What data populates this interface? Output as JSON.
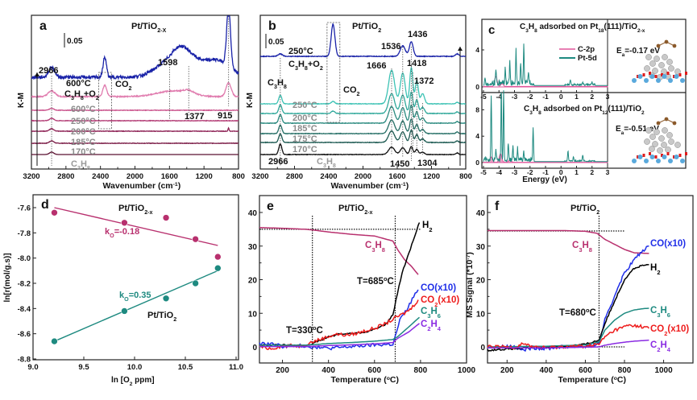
{
  "chart_data": [
    {
      "panel": "a",
      "type": "line",
      "title": "Pt/TiO2-x",
      "xlabel": "Wavenumber (cm-1)",
      "ylabel": "K-M",
      "xlim": [
        3200,
        800
      ],
      "x_ticks": [
        3200,
        2800,
        2400,
        2000,
        1600,
        1200,
        800
      ],
      "scale_bar": "0.05",
      "box_label": "CO2",
      "peak_labels": [
        "2966",
        "1598",
        "1377",
        "915"
      ],
      "peak_positions": [
        2966,
        1598,
        1377,
        915
      ],
      "series": [
        {
          "name": "C3H8",
          "color": "#5b1030",
          "label_color": "#9a9a9a"
        },
        {
          "name": "170°C",
          "color": "#7a1a45",
          "label_color": "#8a8a8a"
        },
        {
          "name": "185°C",
          "color": "#8e2356",
          "label_color": "#8a8a8a"
        },
        {
          "name": "200°C",
          "color": "#b23b74",
          "label_color": "#8a8a8a"
        },
        {
          "name": "250°C",
          "color": "#c9508a",
          "label_color": "#8a8a8a"
        },
        {
          "name": "600°C",
          "color": "#e07bae",
          "label_color": "#8a8a8a"
        },
        {
          "name": "600°C C3H8+O2",
          "color": "#1a23a8",
          "label_color": "#111111"
        }
      ]
    },
    {
      "panel": "b",
      "type": "line",
      "title": "Pt/TiO2",
      "xlabel": "Wavenumber (cm-1)",
      "ylabel": "K-M",
      "xlim": [
        3200,
        800
      ],
      "x_ticks": [
        3200,
        2800,
        2400,
        2000,
        1600,
        1200,
        800
      ],
      "scale_bar": "0.05",
      "box_label": "CO2",
      "peak_labels": [
        "2966",
        "1666",
        "1536",
        "1436",
        "1418",
        "1372",
        "1450",
        "1304"
      ],
      "peak_positions": [
        2966,
        1666,
        1536,
        1436,
        1418,
        1372,
        1450,
        1304
      ],
      "series": [
        {
          "name": "C3H8",
          "color": "#111111",
          "label_color": "#9a9a9a"
        },
        {
          "name": "170°C",
          "color": "#1d5a52",
          "label_color": "#8a8a8a"
        },
        {
          "name": "175°C",
          "color": "#246e65",
          "label_color": "#8a8a8a"
        },
        {
          "name": "185°C",
          "color": "#2a8a7f",
          "label_color": "#8a8a8a"
        },
        {
          "name": "200°C",
          "color": "#2fa89a",
          "label_color": "#8a8a8a"
        },
        {
          "name": "250°C",
          "color": "#3cc2b4",
          "label_color": "#8a8a8a"
        },
        {
          "name": "250°C C3H8+O2",
          "color": "#1a23a8",
          "label_color": "#111111"
        }
      ]
    },
    {
      "panel": "c",
      "type": "line",
      "xlabel": "Energy (eV)",
      "xlim": [
        -5,
        3
      ],
      "ylim": [
        0,
        10
      ],
      "x_ticks": [
        -5,
        -4,
        -3,
        -2,
        -1,
        0,
        1,
        2,
        3
      ],
      "y_ticks": [
        0,
        4,
        8
      ],
      "legend": [
        "C-2p",
        "Pt-5d"
      ],
      "legend_colors": [
        "#e0559a",
        "#1e8a80"
      ],
      "subplots": [
        {
          "title": "C3H8 adsorbed on Pt18(111)/TiO2-x",
          "energy_label": "Ea=-0.17 eV",
          "pt5d_peaks": [
            [
              -4.9,
              0.8
            ],
            [
              -4.2,
              1.3
            ],
            [
              -3.6,
              1.5
            ],
            [
              -3.3,
              2.5
            ],
            [
              -2.9,
              3.5
            ],
            [
              -2.6,
              2.2
            ],
            [
              -2.4,
              4.1
            ],
            [
              -2.1,
              1.2
            ],
            [
              0.6,
              0.6
            ],
            [
              1.4,
              0.3
            ],
            [
              2.0,
              0.3
            ]
          ],
          "c2p_peaks": [
            [
              -4.2,
              1.1
            ],
            [
              -3.8,
              0.3
            ]
          ]
        },
        {
          "title": "C3H8 adsorbed on Pt12(111)/TiO2",
          "energy_label": "Ea=-0.51 eV",
          "pt5d_peaks": [
            [
              -4.9,
              0.6
            ],
            [
              -4.5,
              9.8
            ],
            [
              -4.2,
              1.4
            ],
            [
              -3.85,
              10.8
            ],
            [
              -3.7,
              10.5
            ],
            [
              -3.4,
              2.5
            ],
            [
              -3.1,
              2.2
            ],
            [
              -2.8,
              1.8
            ],
            [
              -2.4,
              1.2
            ],
            [
              -1.8,
              4.6
            ],
            [
              0.45,
              1.6
            ],
            [
              0.8,
              0.6
            ],
            [
              1.4,
              0.8
            ]
          ],
          "c2p_peaks": [
            [
              -4.5,
              0.8
            ],
            [
              -3.9,
              1.3
            ],
            [
              -3.3,
              0.4
            ]
          ]
        }
      ]
    },
    {
      "panel": "d",
      "type": "scatter",
      "xlabel": "ln [O2 ppm]",
      "ylabel": "ln[r(mol/g.s)]",
      "xlim": [
        9.0,
        11.0
      ],
      "ylim": [
        -8.8,
        -7.55
      ],
      "x_ticks": [
        9.0,
        9.5,
        10.0,
        10.5,
        11.0
      ],
      "y_ticks": [
        -7.6,
        -7.8,
        -8.0,
        -8.2,
        -8.4,
        -8.6,
        -8.8
      ],
      "series": [
        {
          "name": "Pt/TiO2-x",
          "color": "#b8306e",
          "slope_label": "kO2=-0.18",
          "x": [
            9.21,
            9.9,
            10.31,
            10.6,
            10.82
          ],
          "y": [
            -7.64,
            -7.72,
            -7.68,
            -7.85,
            -7.99
          ],
          "fit": [
            [
              9.21,
              -7.6
            ],
            [
              10.82,
              -7.9
            ]
          ]
        },
        {
          "name": "Pt/TiO2",
          "color": "#1e8a80",
          "slope_label": "kO2=0.35",
          "x": [
            9.21,
            9.9,
            10.31,
            10.6,
            10.82
          ],
          "y": [
            -8.66,
            -8.42,
            -8.32,
            -8.2,
            -8.08
          ],
          "fit": [
            [
              9.21,
              -8.66
            ],
            [
              10.82,
              -8.1
            ]
          ]
        }
      ]
    },
    {
      "panel": "e",
      "type": "line",
      "title": "Pt/TiO2-x",
      "xlabel": "Temperature (°C)",
      "ylabel": "MS Signal (*10-7)",
      "xlim": [
        100,
        1000
      ],
      "ylim": [
        -5,
        45
      ],
      "x_ticks": [
        200,
        400,
        600,
        800,
        1000
      ],
      "y_ticks": [
        0,
        10,
        20,
        30,
        40
      ],
      "annotations": [
        "T=330°C",
        "T=685°C"
      ],
      "vlines": [
        330,
        690
      ],
      "hline": 35,
      "series": [
        {
          "name": "C3H8",
          "color": "#b8306e",
          "x": [
            100,
            200,
            300,
            330,
            400,
            500,
            600,
            680,
            700,
            730,
            760,
            790
          ],
          "y": [
            35.5,
            35.3,
            35,
            34.8,
            34.2,
            33.5,
            33,
            31.5,
            29,
            26,
            24,
            21.5
          ]
        },
        {
          "name": "H2",
          "color": "#000000",
          "x": [
            100,
            300,
            340,
            400,
            450,
            500,
            550,
            600,
            650,
            680,
            700,
            720,
            750,
            780,
            795
          ],
          "y": [
            0.5,
            0.5,
            1.2,
            3,
            3.8,
            4,
            4.3,
            5.2,
            6.8,
            9.5,
            16,
            22,
            28,
            34,
            37
          ]
        },
        {
          "name": "CO(x10)",
          "color": "#1f2ee8",
          "x": [
            100,
            150,
            200,
            300,
            350,
            400,
            500,
            600,
            680,
            690,
            710,
            740,
            770,
            790
          ],
          "y": [
            0.8,
            1,
            0.2,
            0.3,
            -0.2,
            -0.4,
            0.1,
            0.6,
            0.8,
            3,
            8,
            11,
            15,
            17
          ]
        },
        {
          "name": "CO2(x10)",
          "color": "#ee1c1c",
          "x": [
            100,
            150,
            200,
            280,
            330,
            380,
            430,
            480,
            520,
            560,
            600,
            650,
            680,
            700,
            730,
            760,
            790
          ],
          "y": [
            0,
            -0.5,
            0.3,
            0.3,
            1.5,
            2.6,
            3.8,
            3.5,
            4,
            4.8,
            5.5,
            7,
            8.2,
            9,
            10,
            11.5,
            14
          ]
        },
        {
          "name": "C3H6",
          "color": "#1e8a80",
          "x": [
            100,
            300,
            400,
            500,
            600,
            680,
            700,
            750,
            795
          ],
          "y": [
            0.5,
            0.5,
            1,
            1.3,
            1.7,
            2.2,
            3,
            6,
            8.8
          ]
        },
        {
          "name": "C2H4",
          "color": "#8a2be2",
          "x": [
            100,
            300,
            400,
            500,
            600,
            680,
            700,
            750,
            795
          ],
          "y": [
            0.1,
            0.1,
            0.4,
            0.6,
            0.9,
            1.3,
            2.5,
            4.5,
            7
          ]
        }
      ]
    },
    {
      "panel": "f",
      "type": "line",
      "title": "Pt/TiO2",
      "xlabel": "Temperature (°C)",
      "ylabel": "MS Signal (*10-7)",
      "xlim": [
        100,
        1150
      ],
      "ylim": [
        -5,
        45
      ],
      "x_ticks": [
        200,
        400,
        600,
        800,
        1000
      ],
      "y_ticks": [
        0,
        10,
        20,
        30,
        40
      ],
      "annotations": [
        "T=680°C"
      ],
      "vlines": [
        670
      ],
      "hline": 34.5,
      "series": [
        {
          "name": "C3H8",
          "color": "#b8306e",
          "x": [
            100,
            300,
            500,
            600,
            660,
            700,
            750,
            800,
            850,
            925
          ],
          "y": [
            34.6,
            34.6,
            34.6,
            34.4,
            33.8,
            32,
            30.5,
            29,
            28,
            27.8
          ]
        },
        {
          "name": "CO(x10)",
          "color": "#1f2ee8",
          "x": [
            100,
            230,
            280,
            330,
            400,
            450,
            600,
            670,
            700,
            730,
            760,
            800,
            850,
            900,
            925
          ],
          "y": [
            -0.2,
            0.3,
            -1,
            -0.2,
            -0.6,
            0,
            0.2,
            1,
            8,
            12,
            17,
            22,
            26,
            29,
            30
          ]
        },
        {
          "name": "H2",
          "color": "#000000",
          "x": [
            100,
            300,
            500,
            600,
            670,
            700,
            730,
            760,
            800,
            840,
            880,
            925
          ],
          "y": [
            -1,
            -0.3,
            0.2,
            0.8,
            2,
            7,
            11,
            15,
            20,
            23,
            24,
            24.5
          ]
        },
        {
          "name": "C3H6",
          "color": "#1e8a80",
          "x": [
            100,
            400,
            600,
            670,
            700,
            750,
            800,
            850,
            900,
            925
          ],
          "y": [
            0,
            0.2,
            0.6,
            1.5,
            5,
            8,
            10,
            11,
            11.4,
            11.5
          ]
        },
        {
          "name": "CO2(x10)",
          "color": "#ee1c1c",
          "x": [
            100,
            250,
            280,
            300,
            350,
            400,
            500,
            600,
            670,
            700,
            750,
            800,
            830,
            860,
            900,
            925
          ],
          "y": [
            0,
            0,
            1.3,
            0.5,
            0,
            -0.3,
            0.1,
            0.2,
            0.8,
            3,
            5,
            6,
            6.5,
            6.2,
            6,
            5.5
          ]
        },
        {
          "name": "C2H4",
          "color": "#8a2be2",
          "x": [
            100,
            400,
            600,
            670,
            700,
            750,
            800,
            850,
            900,
            925
          ],
          "y": [
            -0.3,
            -0.3,
            -0.1,
            0,
            0.5,
            1,
            1.4,
            1.7,
            1.9,
            2
          ]
        }
      ]
    }
  ],
  "labels": {
    "a": "a",
    "b": "b",
    "c": "c",
    "d": "d",
    "e": "e",
    "f": "f",
    "a_title": "Pt/TiO",
    "a_title_sub": "2-X",
    "b_title": "Pt/TiO",
    "b_title_sub": "2",
    "scale": "0.05",
    "km": "K-M",
    "wavenumber": "Wavenumber (cm",
    "wavenumber_sup": "-1",
    "energy": "Energy (eV)",
    "d_x": "ln [O",
    "d_x2": " ppm]",
    "d_y": "ln[r(mol/g.s)]",
    "temp": "Temperature (",
    "temp2": "C)",
    "ms_signal": "MS Signal (*10",
    "ms_sup": "-7",
    "c_top_title": "C3H8 adsorbed on Pt18(111)/TiO2-x",
    "c_bot_title": "C3H8 adsorbed on Pt12(111)/TiO2",
    "c_top_ea": "Ea=-0.17 eV",
    "c_bot_ea": "Ea=-0.51 eV",
    "d_top": "Pt/TiO2-x",
    "d_bot": "Pt/TiO2",
    "d_k1": "kO2=-0.18",
    "d_k2": "kO2=0.35"
  }
}
